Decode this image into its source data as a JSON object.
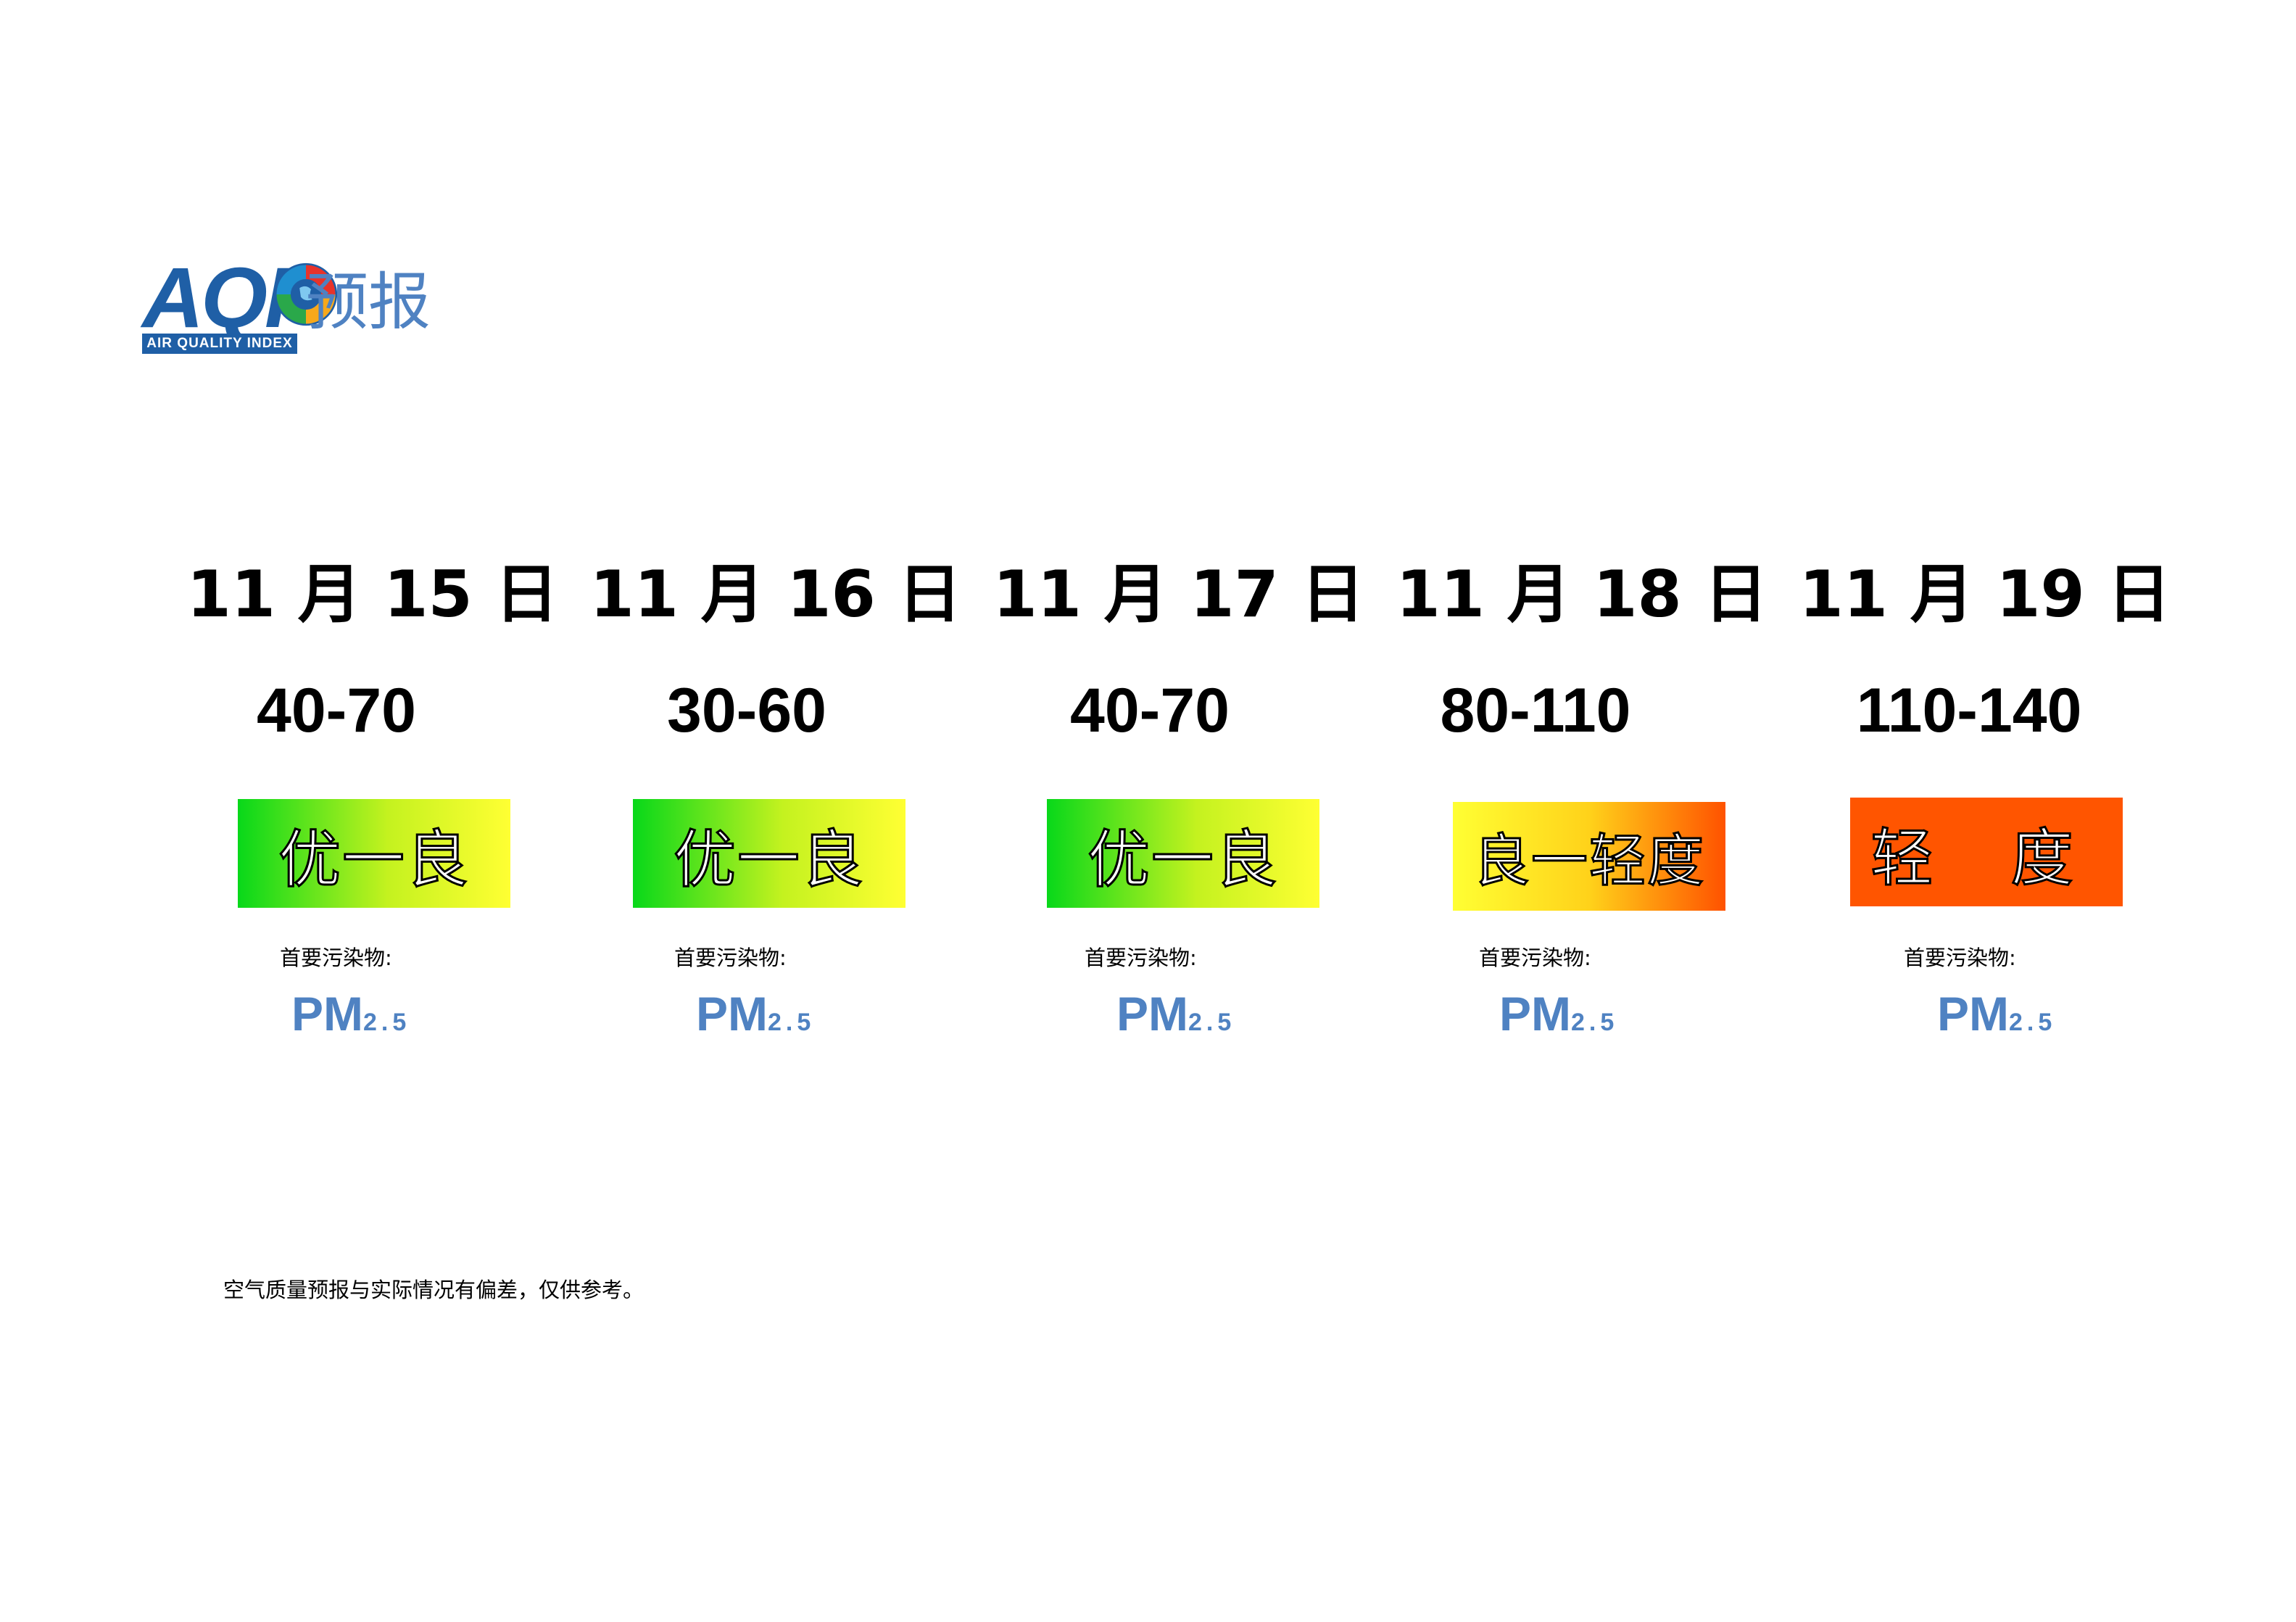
{
  "logo": {
    "letters": "AQI",
    "tagline": "AIR QUALITY INDEX",
    "label": "预报"
  },
  "days": [
    {
      "date": "11 月 15 日",
      "range": "40-70",
      "level": "优一良",
      "pollutant_label": "首要污染物:",
      "pollutant_main": "PM",
      "pollutant_sub": "2.5"
    },
    {
      "date": "11 月 16 日",
      "range": "30-60",
      "level": "优一良",
      "pollutant_label": "首要污染物:",
      "pollutant_main": "PM",
      "pollutant_sub": "2.5"
    },
    {
      "date": "11 月 17 日",
      "range": "40-70",
      "level": "优一良",
      "pollutant_label": "首要污染物:",
      "pollutant_main": "PM",
      "pollutant_sub": "2.5"
    },
    {
      "date": "11 月 18 日",
      "range": "80-110",
      "level": "良一轻度",
      "pollutant_label": "首要污染物:",
      "pollutant_main": "PM",
      "pollutant_sub": "2.5"
    },
    {
      "date": "11 月 19 日",
      "range": "110-140",
      "level": "轻 度",
      "pollutant_label": "首要污染物:",
      "pollutant_main": "PM",
      "pollutant_sub": "2.5"
    }
  ],
  "colors": {
    "good_to_moderate": [
      "#08d81a",
      "#ffff33"
    ],
    "moderate_to_light": [
      "#ffff33",
      "#ff5200"
    ],
    "light": "#ff5500",
    "brand_blue": "#1f5fa6",
    "pollutant_blue": "#4f82c2"
  },
  "footnote": "空气质量预报与实际情况有偏差，仅供参考。"
}
